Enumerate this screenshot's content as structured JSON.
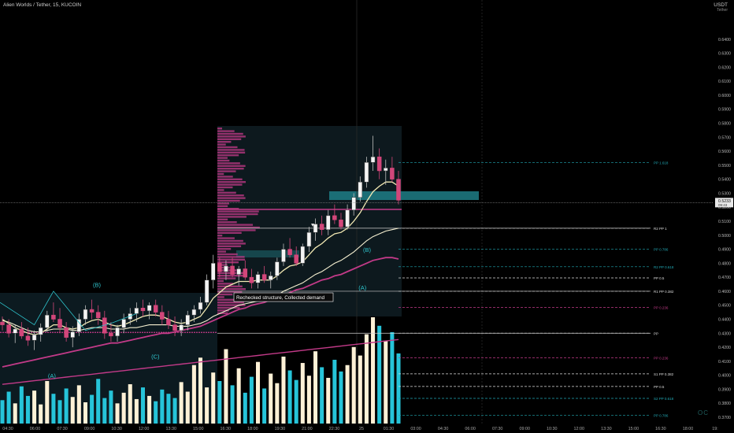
{
  "header": {
    "title": "Alien Worlds / Tether, 15, KUCOIN",
    "currency": "USDT",
    "currency_sub": "Tether"
  },
  "watermark": "OC",
  "chart_data": {
    "type": "candlestick",
    "title": "Alien Worlds / Tether, 15, KUCOIN",
    "ylabel": "USDT",
    "ylim": [
      0.37,
      0.65
    ],
    "y_ticks": [
      "0.6400",
      "0.6300",
      "0.6200",
      "0.6100",
      "0.6000",
      "0.5900",
      "0.5800",
      "0.5700",
      "0.5600",
      "0.5500",
      "0.5400",
      "0.5300",
      "0.5200",
      "0.5100",
      "0.5000",
      "0.4900",
      "0.4800",
      "0.4700",
      "0.4600",
      "0.4500",
      "0.4400",
      "0.4300",
      "0.4200",
      "0.4100",
      "0.4000",
      "0.3900",
      "0.3800",
      "0.3700"
    ],
    "x_ticks": [
      "04:30",
      "06:00",
      "07:30",
      "09:00",
      "10:30",
      "12:00",
      "13:30",
      "15:00",
      "16:30",
      "18:00",
      "19:30",
      "21:00",
      "22:30",
      "25",
      "01:30",
      "03:00",
      "04:30",
      "06:00",
      "07:30",
      "09:00",
      "10:30",
      "12:00",
      "13:30",
      "15:00",
      "16:30",
      "18:00",
      "19:"
    ],
    "current_price": {
      "value": 0.5233,
      "label": "0.5233",
      "sublabel": "09:43"
    },
    "colors": {
      "up": "#f2f2f2",
      "down": "#d2467a",
      "volume_up": "#fff1d6",
      "volume_down": "#26c4d9",
      "ema_fast": "#f3eab4",
      "ema_mid": "#f7f1d2",
      "ema_slow": "#c23a88",
      "teal": "#21a8b4"
    },
    "candles": [
      [
        0.438,
        0.442,
        0.432,
        0.436
      ],
      [
        0.436,
        0.44,
        0.427,
        0.43
      ],
      [
        0.43,
        0.436,
        0.423,
        0.433
      ],
      [
        0.433,
        0.438,
        0.426,
        0.428
      ],
      [
        0.428,
        0.434,
        0.421,
        0.425
      ],
      [
        0.425,
        0.432,
        0.418,
        0.429
      ],
      [
        0.429,
        0.437,
        0.424,
        0.434
      ],
      [
        0.434,
        0.446,
        0.431,
        0.443
      ],
      [
        0.443,
        0.452,
        0.438,
        0.44
      ],
      [
        0.44,
        0.448,
        0.43,
        0.434
      ],
      [
        0.434,
        0.438,
        0.424,
        0.427
      ],
      [
        0.427,
        0.435,
        0.42,
        0.431
      ],
      [
        0.431,
        0.444,
        0.428,
        0.44
      ],
      [
        0.44,
        0.45,
        0.436,
        0.447
      ],
      [
        0.447,
        0.454,
        0.44,
        0.445
      ],
      [
        0.445,
        0.45,
        0.436,
        0.441
      ],
      [
        0.441,
        0.446,
        0.426,
        0.43
      ],
      [
        0.43,
        0.438,
        0.424,
        0.428
      ],
      [
        0.428,
        0.436,
        0.424,
        0.434
      ],
      [
        0.434,
        0.444,
        0.43,
        0.44
      ],
      [
        0.44,
        0.448,
        0.436,
        0.444
      ],
      [
        0.444,
        0.452,
        0.438,
        0.448
      ],
      [
        0.448,
        0.454,
        0.442,
        0.446
      ],
      [
        0.446,
        0.452,
        0.44,
        0.45
      ],
      [
        0.45,
        0.454,
        0.442,
        0.445
      ],
      [
        0.445,
        0.45,
        0.436,
        0.44
      ],
      [
        0.44,
        0.446,
        0.433,
        0.436
      ],
      [
        0.436,
        0.442,
        0.428,
        0.432
      ],
      [
        0.432,
        0.44,
        0.428,
        0.436
      ],
      [
        0.436,
        0.446,
        0.432,
        0.443
      ],
      [
        0.443,
        0.45,
        0.438,
        0.447
      ],
      [
        0.447,
        0.456,
        0.444,
        0.452
      ],
      [
        0.452,
        0.472,
        0.45,
        0.468
      ],
      [
        0.468,
        0.486,
        0.462,
        0.48
      ],
      [
        0.48,
        0.484,
        0.47,
        0.474
      ],
      [
        0.474,
        0.482,
        0.468,
        0.478
      ],
      [
        0.478,
        0.484,
        0.47,
        0.472
      ],
      [
        0.472,
        0.478,
        0.464,
        0.476
      ],
      [
        0.476,
        0.482,
        0.468,
        0.47
      ],
      [
        0.47,
        0.476,
        0.462,
        0.466
      ],
      [
        0.466,
        0.474,
        0.462,
        0.472
      ],
      [
        0.472,
        0.478,
        0.466,
        0.468
      ],
      [
        0.468,
        0.474,
        0.462,
        0.471
      ],
      [
        0.471,
        0.484,
        0.468,
        0.481
      ],
      [
        0.481,
        0.494,
        0.478,
        0.49
      ],
      [
        0.49,
        0.498,
        0.484,
        0.486
      ],
      [
        0.486,
        0.492,
        0.478,
        0.48
      ],
      [
        0.48,
        0.494,
        0.478,
        0.492
      ],
      [
        0.492,
        0.506,
        0.488,
        0.502
      ],
      [
        0.502,
        0.512,
        0.496,
        0.508
      ],
      [
        0.508,
        0.514,
        0.5,
        0.504
      ],
      [
        0.504,
        0.518,
        0.5,
        0.514
      ],
      [
        0.514,
        0.522,
        0.508,
        0.511
      ],
      [
        0.511,
        0.516,
        0.504,
        0.506
      ],
      [
        0.506,
        0.522,
        0.504,
        0.518
      ],
      [
        0.518,
        0.53,
        0.514,
        0.527
      ],
      [
        0.527,
        0.542,
        0.524,
        0.538
      ],
      [
        0.538,
        0.556,
        0.534,
        0.552
      ],
      [
        0.552,
        0.571,
        0.546,
        0.556
      ],
      [
        0.556,
        0.562,
        0.54,
        0.546
      ],
      [
        0.546,
        0.554,
        0.536,
        0.548
      ],
      [
        0.548,
        0.556,
        0.538,
        0.54
      ],
      [
        0.54,
        0.546,
        0.522,
        0.525
      ]
    ],
    "volumes": [
      0.22,
      0.3,
      0.19,
      0.35,
      0.26,
      0.31,
      0.18,
      0.4,
      0.28,
      0.22,
      0.33,
      0.25,
      0.36,
      0.2,
      0.27,
      0.42,
      0.24,
      0.31,
      0.19,
      0.29,
      0.37,
      0.23,
      0.34,
      0.26,
      0.21,
      0.32,
      0.28,
      0.24,
      0.39,
      0.3,
      0.55,
      0.62,
      0.34,
      0.48,
      0.4,
      0.7,
      0.36,
      0.52,
      0.29,
      0.44,
      0.58,
      0.33,
      0.47,
      0.38,
      0.63,
      0.5,
      0.41,
      0.57,
      0.45,
      0.68,
      0.53,
      0.43,
      0.6,
      0.49,
      0.55,
      0.72,
      0.64,
      0.84,
      1.0,
      0.92,
      0.78,
      0.86,
      0.66
    ],
    "ema_fast": [
      0.44,
      0.437,
      0.434,
      0.432,
      0.43,
      0.429,
      0.43,
      0.433,
      0.436,
      0.436,
      0.434,
      0.433,
      0.434,
      0.437,
      0.439,
      0.44,
      0.438,
      0.436,
      0.435,
      0.436,
      0.438,
      0.44,
      0.442,
      0.443,
      0.443,
      0.442,
      0.44,
      0.438,
      0.437,
      0.438,
      0.44,
      0.442,
      0.448,
      0.455,
      0.459,
      0.463,
      0.465,
      0.467,
      0.467,
      0.467,
      0.468,
      0.468,
      0.468,
      0.471,
      0.475,
      0.478,
      0.479,
      0.481,
      0.486,
      0.491,
      0.494,
      0.498,
      0.501,
      0.502,
      0.505,
      0.51,
      0.516,
      0.524,
      0.531,
      0.535,
      0.538,
      0.538,
      0.535
    ],
    "ema_mid": [
      0.439,
      0.438,
      0.436,
      0.434,
      0.432,
      0.431,
      0.431,
      0.432,
      0.433,
      0.433,
      0.433,
      0.432,
      0.432,
      0.433,
      0.434,
      0.434,
      0.434,
      0.433,
      0.433,
      0.433,
      0.434,
      0.434,
      0.435,
      0.436,
      0.436,
      0.436,
      0.436,
      0.435,
      0.435,
      0.435,
      0.436,
      0.437,
      0.439,
      0.442,
      0.444,
      0.446,
      0.448,
      0.45,
      0.451,
      0.452,
      0.453,
      0.454,
      0.455,
      0.457,
      0.46,
      0.462,
      0.464,
      0.466,
      0.469,
      0.472,
      0.474,
      0.477,
      0.48,
      0.482,
      0.485,
      0.488,
      0.492,
      0.496,
      0.499,
      0.501,
      0.503,
      0.504,
      0.505
    ],
    "ema_slow": [
      0.406,
      0.407,
      0.408,
      0.409,
      0.41,
      0.411,
      0.412,
      0.413,
      0.414,
      0.415,
      0.416,
      0.417,
      0.418,
      0.419,
      0.42,
      0.421,
      0.422,
      0.423,
      0.423,
      0.424,
      0.425,
      0.426,
      0.427,
      0.428,
      0.429,
      0.43,
      0.43,
      0.431,
      0.432,
      0.433,
      0.434,
      0.435,
      0.437,
      0.439,
      0.441,
      0.443,
      0.445,
      0.447,
      0.448,
      0.45,
      0.451,
      0.452,
      0.454,
      0.455,
      0.457,
      0.459,
      0.461,
      0.462,
      0.464,
      0.466,
      0.468,
      0.469,
      0.471,
      0.472,
      0.474,
      0.476,
      0.478,
      0.48,
      0.482,
      0.483,
      0.484,
      0.484,
      0.483
    ],
    "pivot_levels": [
      {
        "label": "PP 1.618",
        "value": 0.552,
        "color": "#21a8b4"
      },
      {
        "label": "R2 PP 1",
        "value": 0.505,
        "color": "#dddddd"
      },
      {
        "label": "PP 0.786",
        "value": 0.49,
        "color": "#21a8b4"
      },
      {
        "label": "R2 PP 0.618",
        "value": 0.4775,
        "color": "#21a8b4"
      },
      {
        "label": "PP 0.5",
        "value": 0.4695,
        "color": "#dddddd"
      },
      {
        "label": "R1 PP 0.382",
        "value": 0.46,
        "color": "#dddddd"
      },
      {
        "label": "PP 0.236",
        "value": 0.4485,
        "color": "#c23a88"
      },
      {
        "label": "PP",
        "value": 0.43,
        "color": "#dddddd"
      },
      {
        "label": "PP 0.236",
        "value": 0.4125,
        "color": "#c23a88"
      },
      {
        "label": "S1 PP 0.382",
        "value": 0.401,
        "color": "#dddddd"
      },
      {
        "label": "PP 0.5",
        "value": 0.392,
        "color": "#dddddd"
      },
      {
        "label": "S2 PP 0.618",
        "value": 0.3835,
        "color": "#21a8b4"
      },
      {
        "label": "PP 0.786",
        "value": 0.3715,
        "color": "#21a8b4"
      }
    ],
    "annotations": [
      {
        "text": "(B)",
        "x_index": 21,
        "price": 0.463
      },
      {
        "text": "(C)",
        "x_index": 34,
        "price": 0.412
      },
      {
        "text": "(A)",
        "x_index": 11,
        "price": 0.398
      },
      {
        "text": "(B)",
        "x_index": 81,
        "price": 0.488
      },
      {
        "text": "(A)",
        "x_index": 80,
        "price": 0.461
      }
    ],
    "callout": "Rechecked structure, Collected demand"
  }
}
